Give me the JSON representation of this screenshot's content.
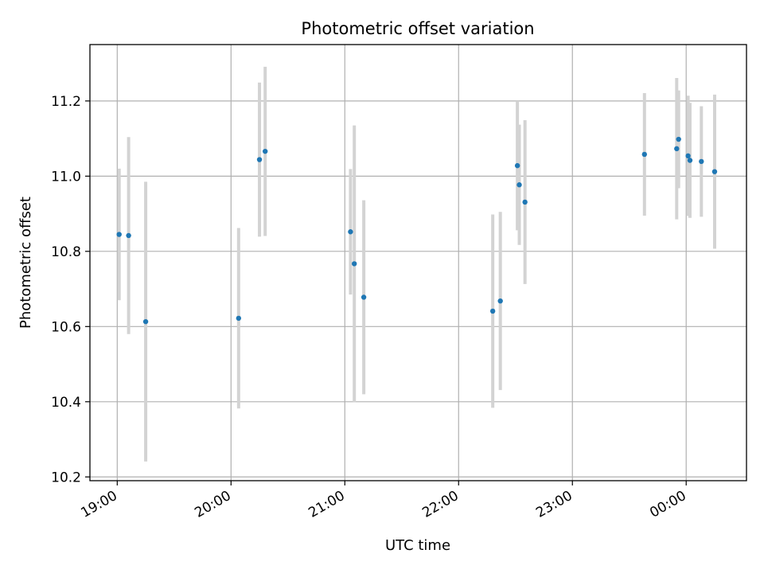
{
  "chart_data": {
    "type": "scatter",
    "title": "Photometric offset variation",
    "xlabel": "UTC time",
    "ylabel": "Photometric offset",
    "x_ticks": [
      "19:00",
      "20:00",
      "21:00",
      "22:00",
      "23:00",
      "00:00"
    ],
    "x_tick_hours": [
      19,
      20,
      21,
      22,
      23,
      24
    ],
    "y_ticks": [
      "10.2",
      "10.4",
      "10.6",
      "10.8",
      "11.0",
      "11.2"
    ],
    "y_tick_values": [
      10.2,
      10.4,
      10.6,
      10.8,
      11.0,
      11.2
    ],
    "xlim_hours": [
      18.76,
      24.53
    ],
    "ylim": [
      10.19,
      11.35
    ],
    "grid": true,
    "colors": {
      "point": "#1f77b4",
      "errorbar": "#d3d3d3",
      "grid": "#b0b0b0"
    },
    "points": [
      {
        "t": "19:01",
        "y": 10.845,
        "err": 0.175
      },
      {
        "t": "19:06",
        "y": 10.842,
        "err": 0.262
      },
      {
        "t": "19:15",
        "y": 10.613,
        "err": 0.372
      },
      {
        "t": "20:04",
        "y": 10.622,
        "err": 0.24
      },
      {
        "t": "20:15",
        "y": 11.044,
        "err": 0.205
      },
      {
        "t": "20:18",
        "y": 11.066,
        "err": 0.225
      },
      {
        "t": "21:03",
        "y": 10.852,
        "err": 0.167
      },
      {
        "t": "21:05",
        "y": 10.767,
        "err": 0.368
      },
      {
        "t": "21:10",
        "y": 10.678,
        "err": 0.258
      },
      {
        "t": "22:18",
        "y": 10.641,
        "err": 0.257
      },
      {
        "t": "22:22",
        "y": 10.668,
        "err": 0.237
      },
      {
        "t": "22:31",
        "y": 11.028,
        "err": 0.172
      },
      {
        "t": "22:32",
        "y": 10.977,
        "err": 0.16
      },
      {
        "t": "22:35",
        "y": 10.931,
        "err": 0.218
      },
      {
        "t": "23:38",
        "y": 11.058,
        "err": 0.163
      },
      {
        "t": "23:55",
        "y": 11.073,
        "err": 0.188
      },
      {
        "t": "23:56",
        "y": 11.098,
        "err": 0.13
      },
      {
        "t": "00:01",
        "y": 11.054,
        "err": 0.16
      },
      {
        "t": "00:02",
        "y": 11.042,
        "err": 0.153
      },
      {
        "t": "00:08",
        "y": 11.039,
        "err": 0.147
      },
      {
        "t": "00:15",
        "y": 11.012,
        "err": 0.205
      }
    ]
  }
}
